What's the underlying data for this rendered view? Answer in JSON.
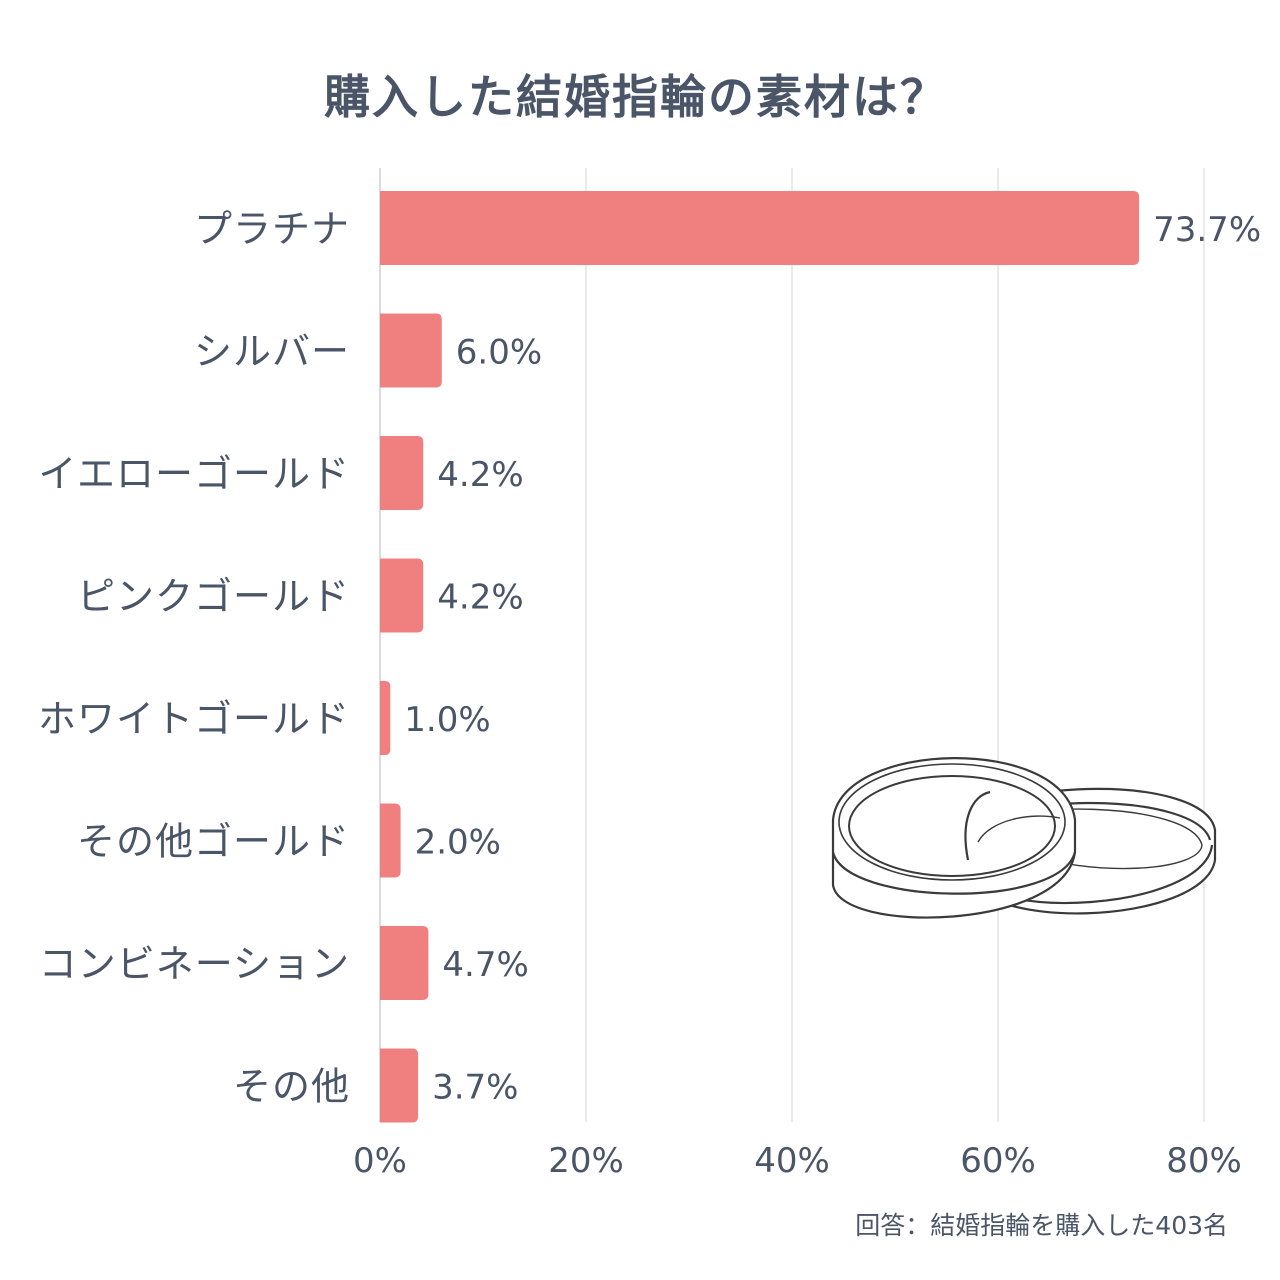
{
  "chart_data": {
    "type": "bar",
    "orientation": "horizontal",
    "title": "購入した結婚指輪の素材は？",
    "categories": [
      "プラチナ",
      "シルバー",
      "イエローゴールド",
      "ピンクゴールド",
      "ホワイトゴールド",
      "その他ゴールド",
      "コンビネーション",
      "その他"
    ],
    "values": [
      73.7,
      6.0,
      4.2,
      4.2,
      1.0,
      2.0,
      4.7,
      3.7
    ],
    "value_labels": [
      "73.7%",
      "6.0%",
      "4.2%",
      "4.2%",
      "1.0%",
      "2.0%",
      "4.7%",
      "3.7%"
    ],
    "xlim": [
      0,
      80
    ],
    "x_ticks": [
      0,
      20,
      40,
      60,
      80
    ],
    "x_tick_labels": [
      "0%",
      "20%",
      "40%",
      "60%",
      "80%"
    ],
    "grid": true,
    "bar_color": "#f08080",
    "note": "回答：結婚指輪を購入した403名"
  },
  "illustration": {
    "icon": "wedding-rings-icon"
  }
}
